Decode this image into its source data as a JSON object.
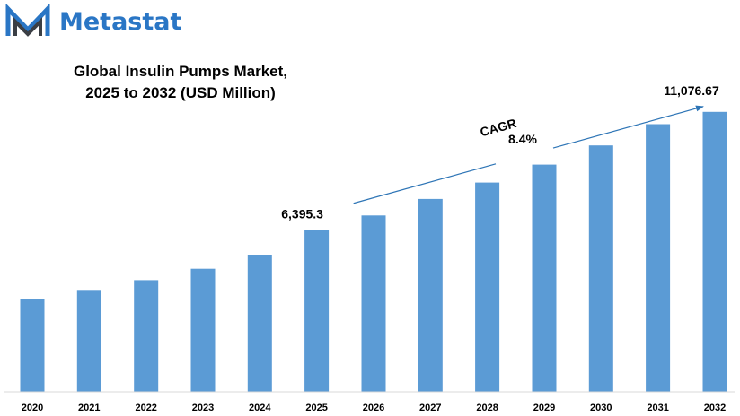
{
  "brand": {
    "name": "Metastat",
    "color": "#2a76c5",
    "logo_icon": "metastat-m-logo-icon"
  },
  "chart_data": {
    "type": "bar",
    "title": "Global Insulin Pumps Market,\n2025 to 2032 (USD Million)",
    "title_lines": [
      "Global Insulin Pumps Market,",
      "2025 to 2032 (USD Million)"
    ],
    "categories": [
      "2020",
      "2021",
      "2022",
      "2023",
      "2024",
      "2025",
      "2026",
      "2027",
      "2028",
      "2029",
      "2030",
      "2031",
      "2032"
    ],
    "values": [
      3660,
      4000,
      4420,
      4870,
      5430,
      6395.3,
      6980,
      7630,
      8280,
      8990,
      9750,
      10590,
      11076.67
    ],
    "data_labels": [
      {
        "category": "2025",
        "text": "6,395.3"
      },
      {
        "category": "2032",
        "text": "11,076.67"
      }
    ],
    "annotation": {
      "label": "CAGR",
      "value": "8.4%",
      "from": "2025",
      "to": "2032"
    },
    "bar_color": "#5b9bd5",
    "arrow_color": "#2e75b6",
    "grid": false,
    "legend": "none",
    "xlabel": "",
    "ylabel": "",
    "ylim": [
      0,
      11850
    ]
  }
}
